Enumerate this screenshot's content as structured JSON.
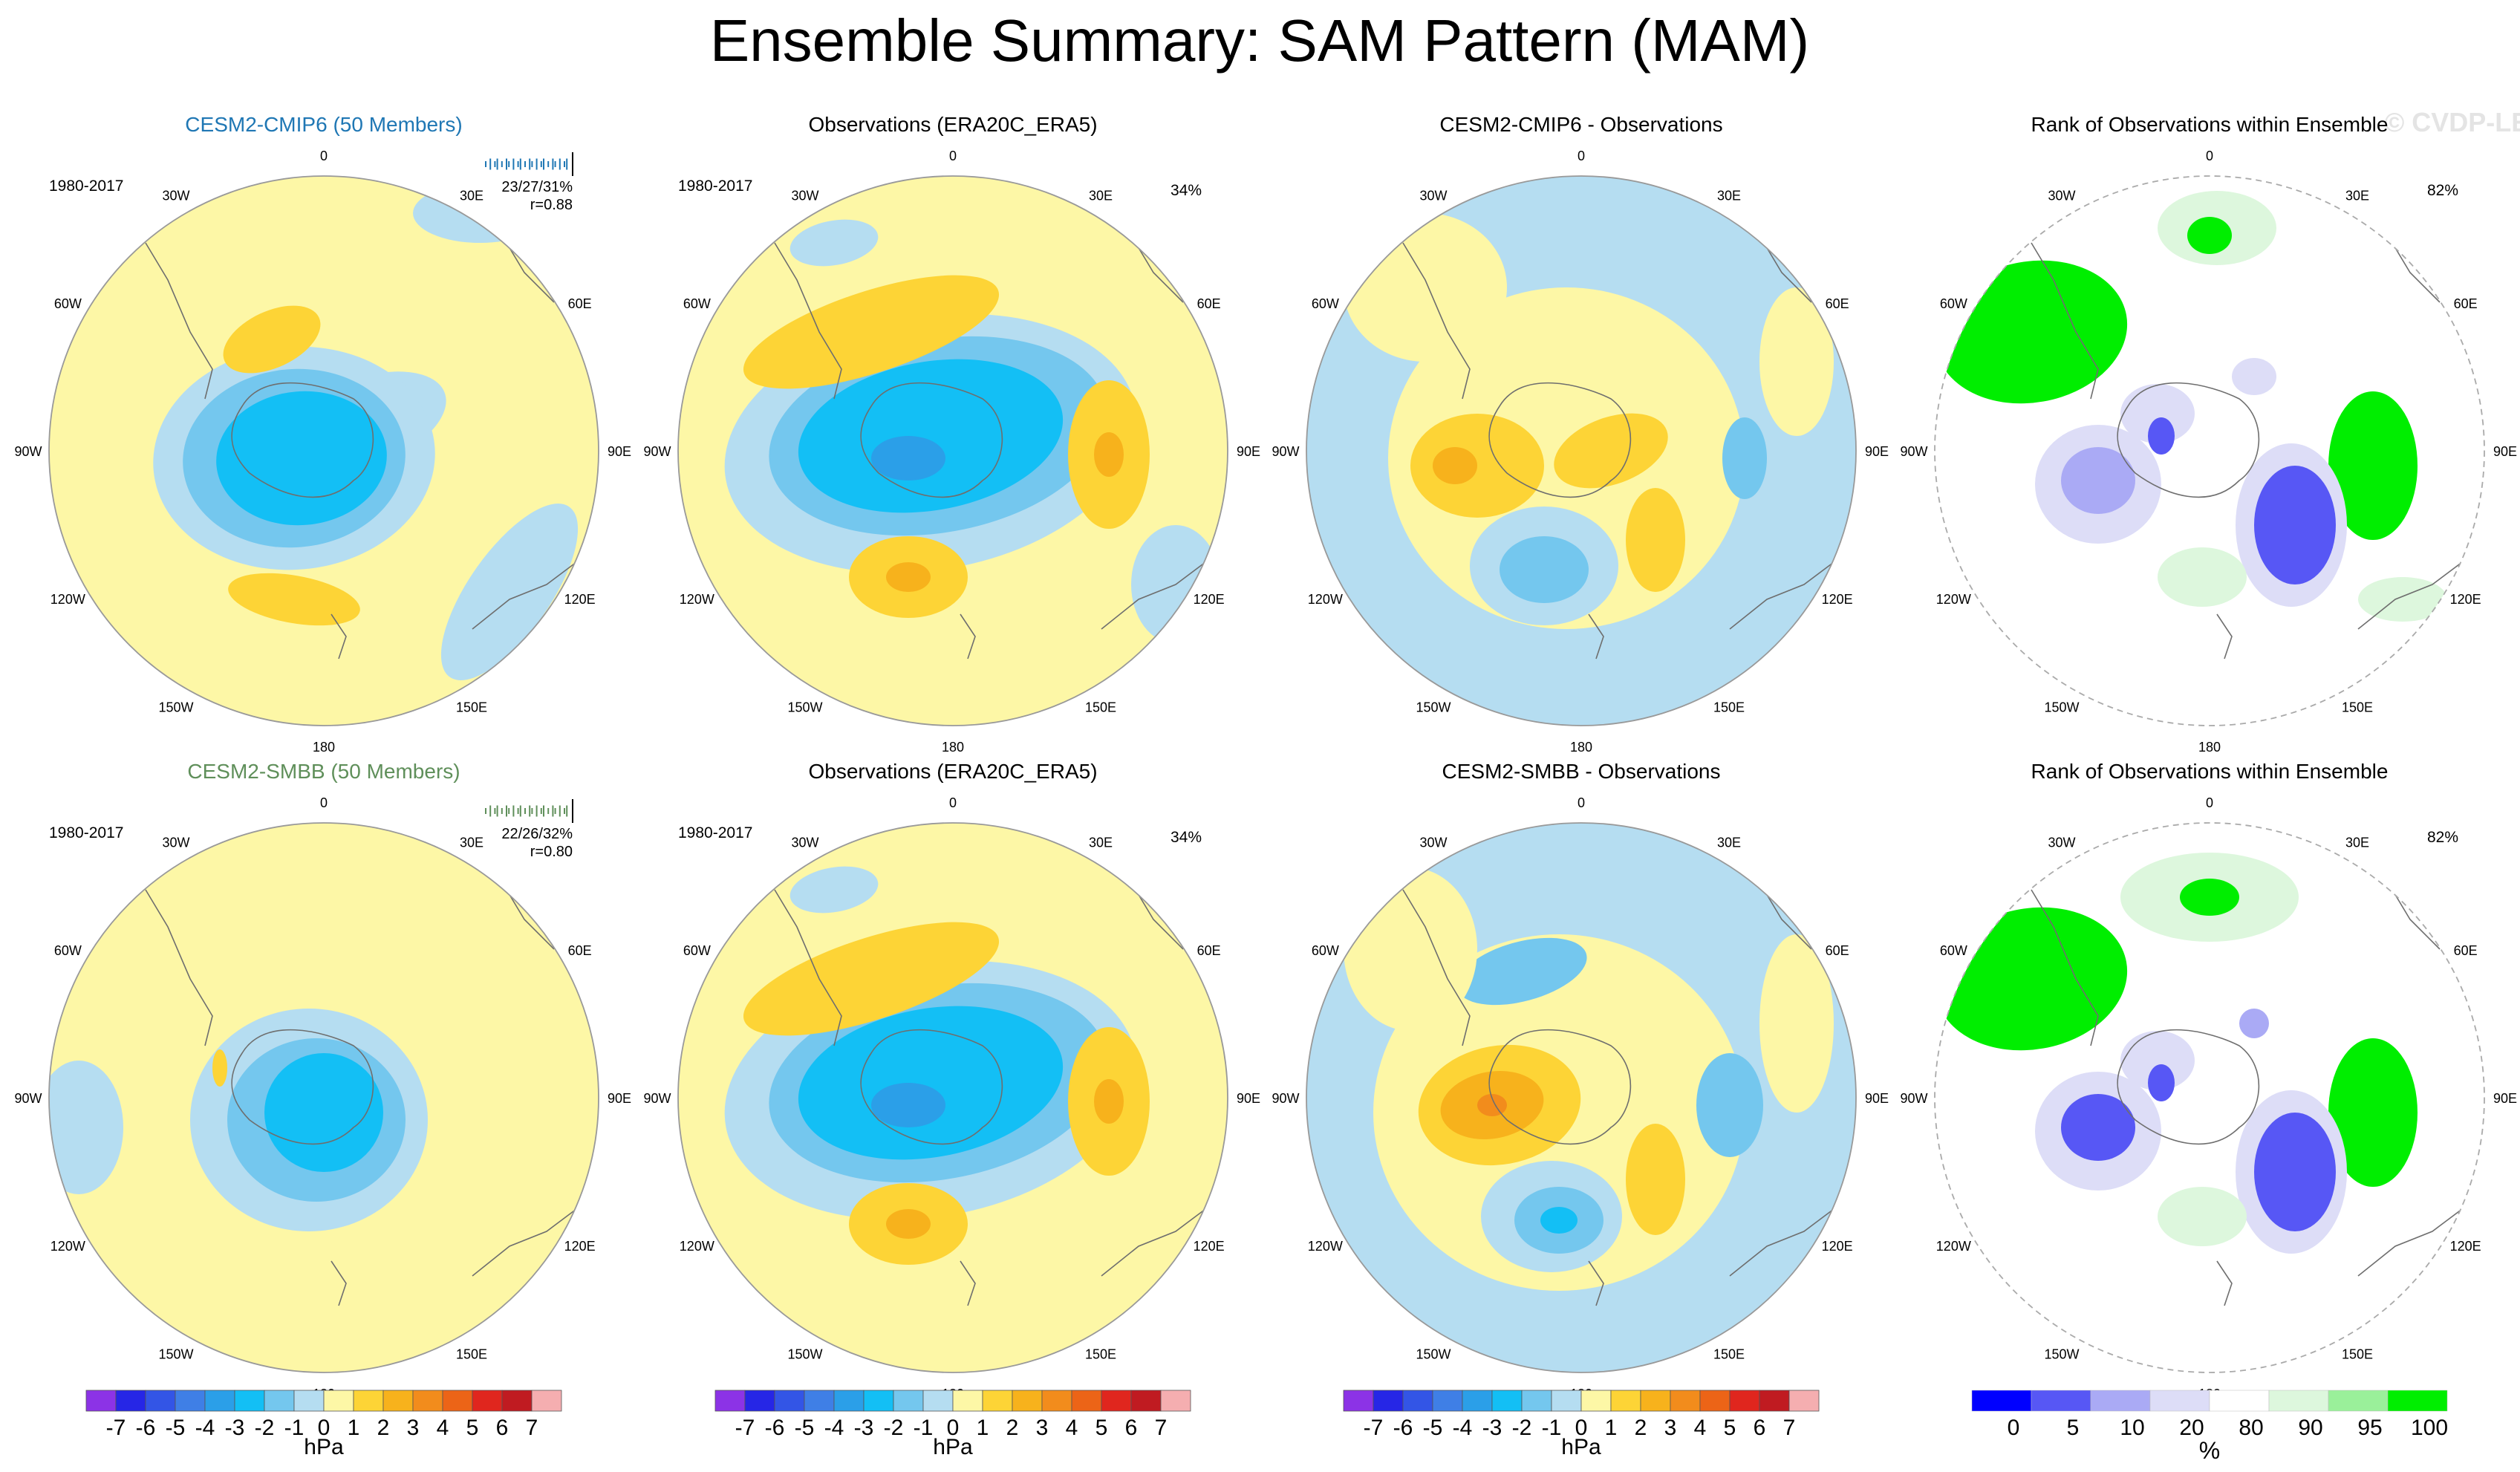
{
  "figure": {
    "title": "Ensemble Summary: SAM Pattern (MAM)",
    "watermark": "© CVDP-LE"
  },
  "chart_data": {
    "type": "polar_contour_map",
    "rows": [
      {
        "model": {
          "title": "CESM2-CMIP6 (50 Members)",
          "title_color": "#1f77b4",
          "period": "1980-2017",
          "stats": "23/27/31%",
          "pattern_corr": "r=0.88"
        },
        "obs": {
          "title": "Observations (ERA20C_ERA5)",
          "period": "1980-2017",
          "percent": "34%"
        },
        "diff": {
          "title": "CESM2-CMIP6 - Observations"
        },
        "rank": {
          "title": "Rank of Observations within Ensemble",
          "percent": "82%"
        }
      },
      {
        "model": {
          "title": "CESM2-SMBB (50 Members)",
          "title_color": "#5f8f5a",
          "period": "1980-2017",
          "stats": "22/26/32%",
          "pattern_corr": "r=0.80"
        },
        "obs": {
          "title": "Observations (ERA20C_ERA5)",
          "period": "1980-2017",
          "percent": "34%"
        },
        "diff": {
          "title": "CESM2-SMBB - Observations"
        },
        "rank": {
          "title": "Rank of Observations within Ensemble",
          "percent": "82%"
        }
      }
    ],
    "longitude_labels": [
      "0",
      "30E",
      "60E",
      "90E",
      "120E",
      "150E",
      "180",
      "150W",
      "120W",
      "90W",
      "60W",
      "30W"
    ],
    "hpa_colorbar": {
      "unit": "hPa",
      "labels": [
        "-7",
        "-6",
        "-5",
        "-4",
        "-3",
        "-2",
        "-1",
        "0",
        "1",
        "2",
        "3",
        "4",
        "5",
        "6",
        "7"
      ],
      "colors": [
        "#8c33e6",
        "#2626e6",
        "#3355e6",
        "#3f7fe6",
        "#2b9fe8",
        "#13bff5",
        "#74c7ee",
        "#b5ddf1",
        "#fdf7a6",
        "#fdd436",
        "#f7b21c",
        "#f28c1c",
        "#ec6417",
        "#e0261e",
        "#c01b21",
        "#f5aeb0"
      ]
    },
    "rank_colorbar": {
      "unit": "%",
      "labels": [
        "0",
        "5",
        "10",
        "20",
        "80",
        "90",
        "95",
        "100"
      ],
      "colors": [
        "#0000ff",
        "#5757f5",
        "#aaaaf5",
        "#ddddf7",
        "#ffffff",
        "#ddf7dd",
        "#9af09a",
        "#00ee00"
      ]
    }
  }
}
